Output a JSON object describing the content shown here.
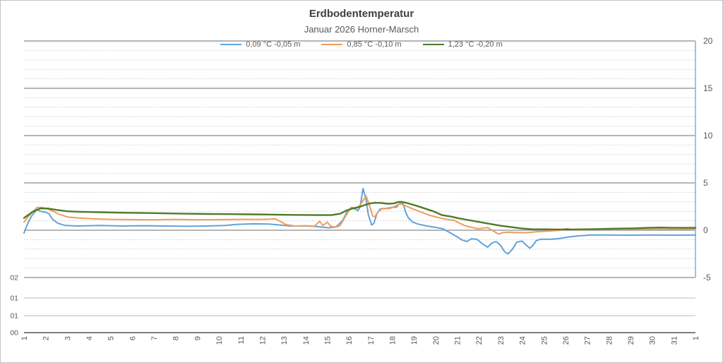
{
  "title": "Erdbodentemperatur",
  "subtitle": "Januar 2026 Horner-Marsch",
  "colors": {
    "title_text": "#3f3f3f",
    "axis_text": "#595959",
    "major_gridline": "#8a8a8a",
    "minor_gridline": "#d6d6d6",
    "bottom_axis": "#7f7f7f",
    "left_axis_lines": "#b9cbdf",
    "right_axis_line": "#9dc3e6"
  },
  "chart_data": {
    "type": "line",
    "title": "Erdbodentemperatur",
    "subtitle": "Januar 2026 Horner-Marsch",
    "xlabel": "",
    "ylabel": "",
    "x_range": [
      1,
      32
    ],
    "x_tick_labels": [
      "1",
      "2",
      "3",
      "4",
      "5",
      "6",
      "7",
      "8",
      "9",
      "10",
      "11",
      "12",
      "13",
      "14",
      "15",
      "16",
      "17",
      "18",
      "19",
      "20",
      "21",
      "22",
      "23",
      "24",
      "25",
      "26",
      "27",
      "28",
      "29",
      "30",
      "31",
      "1"
    ],
    "y_axis_right": {
      "min": -5,
      "max": 20,
      "ticks": [
        20,
        15,
        10,
        5,
        0,
        -5
      ],
      "minor_step": 1
    },
    "y_axis_left_labels": [
      "02",
      "01",
      "01",
      "00"
    ],
    "grid": "major-solid minor-dashed",
    "legend_position": "top-center",
    "series": [
      {
        "name": "0,09 °C -0,05 m",
        "color": "#62a2d8",
        "width": 2,
        "points": [
          [
            1,
            -0.3
          ],
          [
            1.15,
            0.6
          ],
          [
            1.35,
            1.5
          ],
          [
            1.6,
            2.2
          ],
          [
            1.75,
            2.0
          ],
          [
            2.0,
            1.9
          ],
          [
            2.15,
            1.75
          ],
          [
            2.3,
            1.2
          ],
          [
            2.55,
            0.75
          ],
          [
            2.9,
            0.5
          ],
          [
            3.5,
            0.45
          ],
          [
            4.5,
            0.5
          ],
          [
            5.5,
            0.45
          ],
          [
            6.5,
            0.48
          ],
          [
            7.5,
            0.45
          ],
          [
            8.5,
            0.42
          ],
          [
            9.5,
            0.45
          ],
          [
            10.3,
            0.5
          ],
          [
            10.8,
            0.62
          ],
          [
            11.6,
            0.68
          ],
          [
            12.3,
            0.66
          ],
          [
            12.8,
            0.55
          ],
          [
            13.3,
            0.45
          ],
          [
            14.0,
            0.45
          ],
          [
            14.6,
            0.38
          ],
          [
            15.05,
            0.25
          ],
          [
            15.4,
            0.35
          ],
          [
            15.7,
            1.0
          ],
          [
            15.95,
            2.1
          ],
          [
            16.15,
            2.3
          ],
          [
            16.3,
            2.25
          ],
          [
            16.42,
            2.05
          ],
          [
            16.52,
            2.5
          ],
          [
            16.65,
            4.4
          ],
          [
            16.78,
            3.4
          ],
          [
            16.9,
            1.6
          ],
          [
            17.05,
            0.55
          ],
          [
            17.15,
            0.7
          ],
          [
            17.3,
            1.8
          ],
          [
            17.45,
            2.25
          ],
          [
            17.7,
            2.3
          ],
          [
            17.95,
            2.4
          ],
          [
            18.2,
            2.45
          ],
          [
            18.42,
            3.05
          ],
          [
            18.52,
            2.7
          ],
          [
            18.62,
            1.9
          ],
          [
            18.75,
            1.3
          ],
          [
            18.95,
            0.85
          ],
          [
            19.2,
            0.65
          ],
          [
            19.6,
            0.45
          ],
          [
            20.0,
            0.3
          ],
          [
            20.35,
            0.15
          ],
          [
            20.7,
            -0.3
          ],
          [
            21.0,
            -0.7
          ],
          [
            21.2,
            -1.0
          ],
          [
            21.45,
            -1.2
          ],
          [
            21.65,
            -0.9
          ],
          [
            21.9,
            -0.95
          ],
          [
            22.15,
            -1.4
          ],
          [
            22.4,
            -1.8
          ],
          [
            22.6,
            -1.35
          ],
          [
            22.8,
            -1.2
          ],
          [
            23.0,
            -1.6
          ],
          [
            23.2,
            -2.3
          ],
          [
            23.35,
            -2.5
          ],
          [
            23.55,
            -2.0
          ],
          [
            23.75,
            -1.25
          ],
          [
            24.0,
            -1.15
          ],
          [
            24.2,
            -1.6
          ],
          [
            24.35,
            -1.9
          ],
          [
            24.5,
            -1.6
          ],
          [
            24.65,
            -1.1
          ],
          [
            24.85,
            -0.95
          ],
          [
            25.4,
            -0.95
          ],
          [
            25.8,
            -0.85
          ],
          [
            26.2,
            -0.7
          ],
          [
            26.6,
            -0.6
          ],
          [
            27.2,
            -0.5
          ],
          [
            28,
            -0.5
          ],
          [
            29,
            -0.52
          ],
          [
            30,
            -0.5
          ],
          [
            31,
            -0.52
          ],
          [
            32,
            -0.5
          ]
        ]
      },
      {
        "name": "0,85 °C -0,10 m",
        "color": "#ef9c5f",
        "width": 2,
        "points": [
          [
            1,
            0.85
          ],
          [
            1.25,
            1.6
          ],
          [
            1.6,
            2.4
          ],
          [
            1.85,
            2.4
          ],
          [
            2.1,
            2.25
          ],
          [
            2.35,
            2.0
          ],
          [
            2.6,
            1.7
          ],
          [
            3.0,
            1.4
          ],
          [
            3.5,
            1.3
          ],
          [
            4.2,
            1.2
          ],
          [
            5,
            1.15
          ],
          [
            6,
            1.12
          ],
          [
            7,
            1.1
          ],
          [
            8,
            1.15
          ],
          [
            9,
            1.1
          ],
          [
            10,
            1.12
          ],
          [
            11,
            1.15
          ],
          [
            12,
            1.15
          ],
          [
            12.6,
            1.2
          ],
          [
            12.85,
            0.9
          ],
          [
            13.1,
            0.6
          ],
          [
            13.5,
            0.45
          ],
          [
            14.0,
            0.48
          ],
          [
            14.4,
            0.42
          ],
          [
            14.65,
            0.95
          ],
          [
            14.8,
            0.5
          ],
          [
            15.0,
            0.85
          ],
          [
            15.15,
            0.45
          ],
          [
            15.35,
            0.3
          ],
          [
            15.6,
            0.5
          ],
          [
            15.85,
            1.5
          ],
          [
            16.1,
            2.4
          ],
          [
            16.3,
            2.35
          ],
          [
            16.5,
            2.6
          ],
          [
            16.7,
            3.3
          ],
          [
            16.8,
            3.6
          ],
          [
            16.95,
            2.6
          ],
          [
            17.1,
            1.5
          ],
          [
            17.2,
            1.45
          ],
          [
            17.35,
            1.95
          ],
          [
            17.55,
            2.3
          ],
          [
            17.9,
            2.3
          ],
          [
            18.15,
            2.55
          ],
          [
            18.35,
            2.8
          ],
          [
            18.6,
            2.6
          ],
          [
            18.9,
            2.3
          ],
          [
            19.3,
            1.95
          ],
          [
            19.7,
            1.6
          ],
          [
            20.1,
            1.35
          ],
          [
            20.5,
            1.15
          ],
          [
            20.85,
            1.05
          ],
          [
            21.1,
            0.75
          ],
          [
            21.4,
            0.45
          ],
          [
            21.7,
            0.3
          ],
          [
            21.95,
            0.15
          ],
          [
            22.2,
            0.2
          ],
          [
            22.4,
            0.28
          ],
          [
            22.65,
            -0.05
          ],
          [
            22.9,
            -0.4
          ],
          [
            23.1,
            -0.25
          ],
          [
            23.4,
            -0.2
          ],
          [
            23.7,
            -0.25
          ],
          [
            24.0,
            -0.25
          ],
          [
            24.3,
            -0.25
          ],
          [
            24.7,
            -0.15
          ],
          [
            25.2,
            -0.1
          ],
          [
            25.7,
            -0.02
          ],
          [
            26.05,
            0.18
          ],
          [
            26.35,
            0.05
          ],
          [
            26.8,
            0.05
          ],
          [
            27.5,
            0.08
          ],
          [
            28.5,
            0.1
          ],
          [
            29.5,
            0.1
          ],
          [
            30.5,
            0.1
          ],
          [
            31.3,
            0.1
          ],
          [
            32,
            0.15
          ]
        ]
      },
      {
        "name": "1,23 °C -0,20 m",
        "color": "#4f7b28",
        "width": 2.4,
        "points": [
          [
            1,
            1.3
          ],
          [
            1.4,
            1.95
          ],
          [
            1.75,
            2.3
          ],
          [
            2.1,
            2.3
          ],
          [
            2.5,
            2.15
          ],
          [
            3.0,
            2.0
          ],
          [
            3.6,
            1.95
          ],
          [
            4.5,
            1.9
          ],
          [
            5.5,
            1.85
          ],
          [
            6.5,
            1.82
          ],
          [
            7.5,
            1.78
          ],
          [
            8.5,
            1.75
          ],
          [
            9.5,
            1.72
          ],
          [
            10.5,
            1.7
          ],
          [
            11.5,
            1.68
          ],
          [
            12.5,
            1.65
          ],
          [
            13.5,
            1.62
          ],
          [
            14.5,
            1.6
          ],
          [
            15.2,
            1.6
          ],
          [
            15.6,
            1.75
          ],
          [
            15.9,
            2.1
          ],
          [
            16.15,
            2.3
          ],
          [
            16.4,
            2.4
          ],
          [
            16.65,
            2.6
          ],
          [
            16.9,
            2.8
          ],
          [
            17.2,
            2.9
          ],
          [
            17.5,
            2.88
          ],
          [
            17.8,
            2.8
          ],
          [
            18.05,
            2.82
          ],
          [
            18.3,
            3.0
          ],
          [
            18.55,
            2.95
          ],
          [
            18.8,
            2.8
          ],
          [
            19.1,
            2.6
          ],
          [
            19.5,
            2.3
          ],
          [
            19.9,
            2.0
          ],
          [
            20.3,
            1.6
          ],
          [
            20.7,
            1.45
          ],
          [
            21.1,
            1.25
          ],
          [
            21.5,
            1.08
          ],
          [
            22.0,
            0.88
          ],
          [
            22.5,
            0.68
          ],
          [
            23.0,
            0.48
          ],
          [
            23.5,
            0.33
          ],
          [
            24.0,
            0.18
          ],
          [
            24.5,
            0.1
          ],
          [
            25.0,
            0.1
          ],
          [
            25.6,
            0.08
          ],
          [
            26.2,
            0.08
          ],
          [
            26.8,
            0.1
          ],
          [
            27.4,
            0.12
          ],
          [
            28.0,
            0.15
          ],
          [
            28.6,
            0.18
          ],
          [
            29.2,
            0.2
          ],
          [
            29.8,
            0.25
          ],
          [
            30.4,
            0.28
          ],
          [
            31.0,
            0.25
          ],
          [
            31.5,
            0.25
          ],
          [
            32,
            0.25
          ]
        ]
      }
    ]
  }
}
